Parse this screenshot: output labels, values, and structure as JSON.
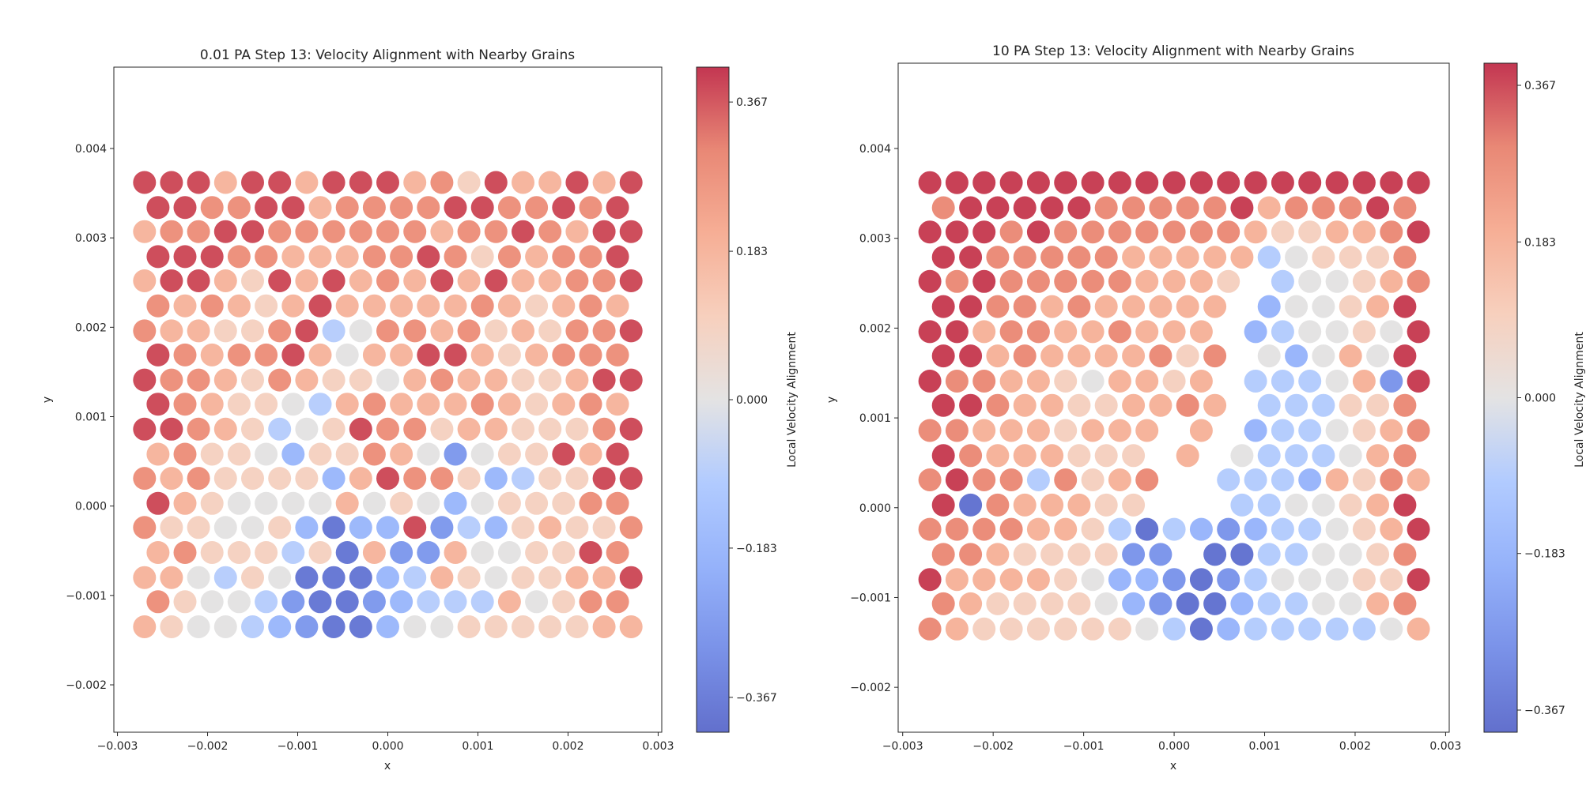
{
  "colormap": "coolwarm",
  "marker_alpha": 0.8,
  "colormap_stops": [
    "#3b4cc0",
    "#5977e3",
    "#7b9ff9",
    "#9ebeff",
    "#dddcdc",
    "#f5c4ad",
    "#f49a7b",
    "#e36a53",
    "#b40426"
  ],
  "chart_data": [
    {
      "type": "scatter",
      "title": "0.01 PA Step 13: Velocity Alignment with Nearby Grains",
      "xlabel": "x",
      "ylabel": "y",
      "xlim": [
        -0.00304,
        0.00304
      ],
      "ylim": [
        -0.00253,
        0.00491
      ],
      "xticks": [
        "−0.003",
        "−0.002",
        "−0.001",
        "0.000",
        "0.001",
        "0.002",
        "0.003"
      ],
      "xtick_values": [
        -0.003,
        -0.002,
        -0.001,
        0,
        0.001,
        0.002,
        0.003
      ],
      "yticks": [
        "−0.002",
        "−0.001",
        "0.000",
        "0.001",
        "0.002",
        "0.003",
        "0.004"
      ],
      "ytick_values": [
        -0.002,
        -0.001,
        0,
        0.001,
        0.002,
        0.003,
        0.004
      ],
      "colorbar": {
        "label": "Local Velocity Alignment",
        "range": [
          -0.41,
          0.41
        ],
        "ticks": [
          "−0.367",
          "−0.183",
          "0.000",
          "0.183",
          "0.367"
        ],
        "tick_values": [
          -0.367,
          -0.183,
          0,
          0.183,
          0.367
        ]
      },
      "grain_x": {
        "even": [
          -0.0027,
          -0.0024,
          -0.0021,
          -0.0018,
          -0.0015,
          -0.0012,
          -0.0009,
          -0.0006,
          -0.0003,
          0,
          0.0003,
          0.0006,
          0.0009,
          0.0012,
          0.0015,
          0.0018,
          0.0021,
          0.0024,
          0.0027
        ],
        "odd": [
          -0.00255,
          -0.00225,
          -0.00195,
          -0.00165,
          -0.00135,
          -0.00105,
          -0.00075,
          -0.00045,
          -0.00015,
          0.00015,
          0.00045,
          0.00075,
          0.00105,
          0.00135,
          0.00165,
          0.00195,
          0.00225,
          0.00255
        ]
      },
      "rows": [
        {
          "y": 0.00362,
          "v": [
            0.38,
            0.38,
            0.38,
            0.18,
            0.38,
            0.38,
            0.18,
            0.38,
            0.38,
            0.38,
            0.18,
            0.28,
            0.09,
            0.38,
            0.18,
            0.18,
            0.38,
            0.18,
            0.38
          ]
        },
        {
          "y": 0.00334,
          "v": [
            0.38,
            0.38,
            0.28,
            0.28,
            0.38,
            0.38,
            0.18,
            0.28,
            0.28,
            0.28,
            0.28,
            0.38,
            0.38,
            0.28,
            0.28,
            0.38,
            0.28,
            0.38
          ]
        },
        {
          "y": 0.00307,
          "v": [
            0.18,
            0.28,
            0.28,
            0.38,
            0.38,
            0.28,
            0.28,
            0.28,
            0.28,
            0.28,
            0.28,
            0.18,
            0.28,
            0.28,
            0.38,
            0.28,
            0.18,
            0.38,
            0.38
          ]
        },
        {
          "y": 0.00279,
          "v": [
            0.38,
            0.38,
            0.38,
            0.28,
            0.28,
            0.18,
            0.18,
            0.18,
            0.28,
            0.28,
            0.38,
            0.28,
            0.09,
            0.28,
            0.18,
            0.28,
            0.28,
            0.38
          ]
        },
        {
          "y": 0.00252,
          "v": [
            0.18,
            0.38,
            0.38,
            0.18,
            0.09,
            0.38,
            0.18,
            0.38,
            0.18,
            0.28,
            0.18,
            0.38,
            0.18,
            0.38,
            0.18,
            0.18,
            0.28,
            0.28,
            0.38
          ]
        },
        {
          "y": 0.00224,
          "v": [
            0.28,
            0.18,
            0.28,
            0.18,
            0.09,
            0.18,
            0.38,
            0.18,
            0.18,
            0.18,
            0.18,
            0.18,
            0.28,
            0.18,
            0.09,
            0.18,
            0.28,
            0.18
          ]
        },
        {
          "y": 0.00196,
          "v": [
            0.28,
            0.18,
            0.18,
            0.09,
            0.09,
            0.28,
            0.38,
            -0.09,
            0,
            0.28,
            0.28,
            0.18,
            0.28,
            0.09,
            0.18,
            0.09,
            0.28,
            0.28,
            0.38
          ]
        },
        {
          "y": 0.00169,
          "v": [
            0.38,
            0.28,
            0.18,
            0.28,
            0.28,
            0.38,
            0.18,
            0,
            0.18,
            0.18,
            0.38,
            0.38,
            0.18,
            0.09,
            0.18,
            0.28,
            0.28,
            0.28
          ]
        },
        {
          "y": 0.00141,
          "v": [
            0.38,
            0.28,
            0.28,
            0.18,
            0.09,
            0.28,
            0.18,
            0.09,
            0.09,
            0,
            0.18,
            0.28,
            0.18,
            0.18,
            0.09,
            0.09,
            0.18,
            0.38,
            0.38
          ]
        },
        {
          "y": 0.00114,
          "v": [
            0.38,
            0.28,
            0.18,
            0.09,
            0.09,
            0,
            -0.09,
            0.18,
            0.28,
            0.18,
            0.18,
            0.18,
            0.28,
            0.18,
            0.09,
            0.18,
            0.28,
            0.18
          ]
        },
        {
          "y": 0.00086,
          "v": [
            0.38,
            0.38,
            0.28,
            0.18,
            0.09,
            -0.09,
            0,
            0.09,
            0.38,
            0.28,
            0.28,
            0.09,
            0.18,
            0.18,
            0.09,
            0.09,
            0.09,
            0.28,
            0.38
          ]
        },
        {
          "y": 0.00058,
          "v": [
            0.18,
            0.28,
            0.09,
            0.09,
            0,
            -0.18,
            0.09,
            0.09,
            0.28,
            0.18,
            0,
            -0.28,
            0,
            0.09,
            0.09,
            0.38,
            0.18,
            0.38
          ]
        },
        {
          "y": 0.00031,
          "v": [
            0.28,
            0.18,
            0.28,
            0.09,
            0.09,
            0.09,
            0.09,
            -0.18,
            0.18,
            0.38,
            0.28,
            0.28,
            0.09,
            -0.18,
            -0.09,
            0.09,
            0.09,
            0.38,
            0.38
          ]
        },
        {
          "y": 3e-05,
          "v": [
            0.38,
            0.18,
            0.09,
            0,
            0,
            0,
            0,
            0.18,
            0,
            0.09,
            0,
            -0.18,
            0,
            0.09,
            0.09,
            0.09,
            0.28,
            0.28
          ]
        },
        {
          "y": -0.00024,
          "v": [
            0.28,
            0.09,
            0.09,
            0,
            0,
            0.09,
            -0.18,
            -0.38,
            -0.18,
            -0.18,
            0.38,
            -0.28,
            -0.09,
            -0.18,
            0.09,
            0.18,
            0.09,
            0.09,
            0.28
          ]
        },
        {
          "y": -0.00052,
          "v": [
            0.18,
            0.28,
            0.09,
            0.09,
            0.09,
            -0.09,
            0.09,
            -0.38,
            0.18,
            -0.28,
            -0.28,
            0.18,
            0,
            0,
            0.09,
            0.09,
            0.38,
            0.28
          ]
        },
        {
          "y": -0.0008,
          "v": [
            0.18,
            0.18,
            0,
            -0.09,
            0.09,
            0,
            -0.38,
            -0.38,
            -0.38,
            -0.18,
            -0.09,
            0.18,
            0.09,
            0,
            0.09,
            0.09,
            0.18,
            0.18,
            0.38
          ]
        },
        {
          "y": -0.00107,
          "v": [
            0.28,
            0.09,
            0,
            0,
            -0.09,
            -0.28,
            -0.38,
            -0.38,
            -0.28,
            -0.18,
            -0.09,
            -0.09,
            -0.09,
            0.18,
            0,
            0.09,
            0.28,
            0.28
          ]
        },
        {
          "y": -0.00135,
          "v": [
            0.18,
            0.09,
            0,
            0,
            -0.09,
            -0.18,
            -0.28,
            -0.38,
            -0.38,
            -0.18,
            0,
            0,
            0.09,
            0.09,
            0.09,
            0.09,
            0.09,
            0.18,
            0.18
          ]
        }
      ]
    },
    {
      "type": "scatter",
      "title": "10 PA Step 13: Velocity Alignment with Nearby Grains",
      "xlabel": "x",
      "ylabel": "y",
      "xlim": [
        -0.00305,
        0.00304
      ],
      "ylim": [
        -0.0025,
        0.00495
      ],
      "xticks": [
        "−0.003",
        "−0.002",
        "−0.001",
        "0.000",
        "0.001",
        "0.002",
        "0.003"
      ],
      "xtick_values": [
        -0.003,
        -0.002,
        -0.001,
        0,
        0.001,
        0.002,
        0.003
      ],
      "yticks": [
        "−0.002",
        "−0.001",
        "0.000",
        "0.001",
        "0.002",
        "0.003",
        "0.004"
      ],
      "ytick_values": [
        -0.002,
        -0.001,
        0,
        0.001,
        0.002,
        0.003,
        0.004
      ],
      "colorbar": {
        "label": "Local Velocity Alignment",
        "range": [
          -0.393,
          0.393
        ],
        "ticks": [
          "−0.367",
          "−0.183",
          "0.000",
          "0.183",
          "0.367"
        ],
        "tick_values": [
          -0.367,
          -0.183,
          0,
          0.183,
          0.367
        ]
      },
      "grain_x": {
        "even": [
          -0.0027,
          -0.0024,
          -0.0021,
          -0.0018,
          -0.0015,
          -0.0012,
          -0.0009,
          -0.0006,
          -0.0003,
          0,
          0.0003,
          0.0006,
          0.0009,
          0.0012,
          0.0015,
          0.0018,
          0.0021,
          0.0024,
          0.0027
        ],
        "odd": [
          -0.00255,
          -0.00225,
          -0.00195,
          -0.00165,
          -0.00135,
          -0.00105,
          -0.00075,
          -0.00045,
          -0.00015,
          0.00015,
          0.00045,
          0.00075,
          0.00105,
          0.00135,
          0.00165,
          0.00195,
          0.00225,
          0.00255
        ]
      },
      "rows": [
        {
          "y": 0.00362,
          "v": [
            0.38,
            0.38,
            0.38,
            0.38,
            0.38,
            0.38,
            0.38,
            0.38,
            0.38,
            0.38,
            0.38,
            0.38,
            0.38,
            0.38,
            0.38,
            0.38,
            0.38,
            0.38,
            0.38
          ]
        },
        {
          "y": 0.00334,
          "v": [
            0.28,
            0.38,
            0.38,
            0.38,
            0.38,
            0.38,
            0.28,
            0.28,
            0.28,
            0.28,
            0.28,
            0.38,
            0.18,
            0.28,
            0.28,
            0.28,
            0.38,
            0.28
          ]
        },
        {
          "y": 0.00307,
          "v": [
            0.38,
            0.38,
            0.38,
            0.28,
            0.38,
            0.28,
            0.28,
            0.28,
            0.28,
            0.28,
            0.28,
            0.28,
            0.18,
            0.09,
            0.09,
            0.18,
            0.18,
            0.28,
            0.38
          ]
        },
        {
          "y": 0.00279,
          "v": [
            0.38,
            0.38,
            0.28,
            0.28,
            0.28,
            0.28,
            0.28,
            0.18,
            0.18,
            0.18,
            0.18,
            0.18,
            -0.09,
            0,
            0.09,
            0.09,
            0.09,
            0.28
          ]
        },
        {
          "y": 0.00252,
          "v": [
            0.38,
            0.28,
            0.38,
            0.28,
            0.28,
            0.28,
            0.28,
            0.28,
            0.18,
            0.18,
            0.18,
            0.09,
            null,
            -0.09,
            0,
            0,
            0.09,
            0.18,
            0.28
          ]
        },
        {
          "y": 0.00224,
          "v": [
            0.38,
            0.38,
            0.28,
            0.28,
            0.18,
            0.28,
            0.18,
            0.18,
            0.18,
            0.18,
            0.18,
            null,
            -0.18,
            0,
            0,
            0.09,
            0.18,
            0.38
          ]
        },
        {
          "y": 0.00196,
          "v": [
            0.38,
            0.38,
            0.18,
            0.28,
            0.28,
            0.18,
            0.18,
            0.28,
            0.18,
            0.18,
            0.18,
            null,
            -0.18,
            -0.09,
            0,
            0,
            0.09,
            0,
            0.38
          ]
        },
        {
          "y": 0.00169,
          "v": [
            0.38,
            0.38,
            0.18,
            0.28,
            0.18,
            0.18,
            0.18,
            0.18,
            0.28,
            0.09,
            0.28,
            null,
            0,
            -0.18,
            0,
            0.18,
            0,
            0.38
          ]
        },
        {
          "y": 0.00141,
          "v": [
            0.38,
            0.28,
            0.28,
            0.18,
            0.18,
            0.09,
            0,
            0.18,
            0.18,
            0.09,
            0.18,
            null,
            -0.09,
            -0.09,
            -0.09,
            0,
            0.18,
            -0.28,
            0.38
          ]
        },
        {
          "y": 0.00114,
          "v": [
            0.38,
            0.38,
            0.28,
            0.18,
            0.18,
            0.09,
            0.09,
            0.18,
            0.18,
            0.28,
            0.18,
            null,
            -0.09,
            -0.09,
            -0.09,
            0.09,
            0.09,
            0.28
          ]
        },
        {
          "y": 0.00086,
          "v": [
            0.28,
            0.28,
            0.18,
            0.18,
            0.18,
            0.09,
            0.18,
            0.18,
            0.18,
            null,
            0.18,
            null,
            -0.18,
            -0.09,
            -0.09,
            0,
            0.09,
            0.18,
            0.28
          ]
        },
        {
          "y": 0.00058,
          "v": [
            0.38,
            0.28,
            0.18,
            0.18,
            0.18,
            0.09,
            0.09,
            0.09,
            null,
            0.18,
            null,
            0,
            -0.09,
            -0.09,
            -0.09,
            0,
            0.18,
            0.28
          ]
        },
        {
          "y": 0.00031,
          "v": [
            0.28,
            0.38,
            0.28,
            0.28,
            -0.09,
            0.28,
            0.09,
            0.18,
            0.28,
            null,
            null,
            -0.09,
            -0.09,
            -0.09,
            -0.18,
            0.18,
            0.09,
            0.28,
            0.18
          ]
        },
        {
          "y": 3e-05,
          "v": [
            0.38,
            -0.38,
            0.28,
            0.18,
            0.18,
            0.18,
            0.09,
            0.09,
            null,
            null,
            null,
            -0.09,
            -0.09,
            0,
            0,
            0.09,
            0.18,
            0.38
          ]
        },
        {
          "y": -0.00024,
          "v": [
            0.28,
            0.28,
            0.28,
            0.28,
            0.18,
            0.18,
            0.09,
            -0.09,
            -0.38,
            -0.09,
            -0.18,
            -0.28,
            -0.18,
            -0.09,
            -0.09,
            0,
            0.09,
            0.18,
            0.38
          ]
        },
        {
          "y": -0.00052,
          "v": [
            0.28,
            0.28,
            0.18,
            0.09,
            0.09,
            0.09,
            0.09,
            -0.28,
            -0.28,
            null,
            -0.38,
            -0.38,
            -0.09,
            -0.09,
            0,
            0,
            0.09,
            0.28
          ]
        },
        {
          "y": -0.0008,
          "v": [
            0.38,
            0.18,
            0.18,
            0.18,
            0.18,
            0.09,
            0,
            -0.18,
            -0.18,
            -0.28,
            -0.38,
            -0.28,
            -0.09,
            0,
            0,
            0,
            0.09,
            0.09,
            0.38
          ]
        },
        {
          "y": -0.00107,
          "v": [
            0.28,
            0.18,
            0.09,
            0.09,
            0.09,
            0.09,
            0,
            -0.18,
            -0.28,
            -0.38,
            -0.38,
            -0.18,
            -0.09,
            -0.09,
            0,
            0,
            0.18,
            0.28
          ]
        },
        {
          "y": -0.00135,
          "v": [
            0.28,
            0.18,
            0.09,
            0.09,
            0.09,
            0.09,
            0.09,
            0.09,
            0,
            -0.09,
            -0.38,
            -0.18,
            -0.09,
            -0.09,
            -0.09,
            -0.09,
            -0.09,
            0,
            0.18
          ]
        }
      ]
    }
  ]
}
